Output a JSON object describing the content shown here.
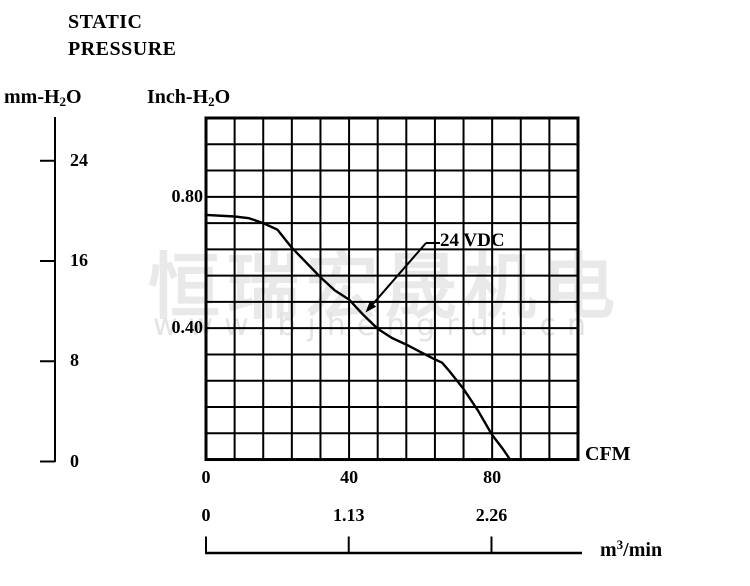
{
  "title": {
    "line1": "STATIC",
    "line2": "PRESSURE"
  },
  "axes": {
    "left_unit": {
      "prefix": "mm-H",
      "sub": "2",
      "suffix": "O"
    },
    "inner_unit": {
      "prefix": "Inch-H",
      "sub": "2",
      "suffix": "O"
    },
    "cfm_unit": "CFM",
    "m3_unit": {
      "prefix": "m",
      "sup": "3",
      "suffix": "/min"
    },
    "mm_ticks": [
      {
        "label": "24",
        "value": 24
      },
      {
        "label": "16",
        "value": 16
      },
      {
        "label": "8",
        "value": 8
      },
      {
        "label": "0",
        "value": 0
      }
    ],
    "inch_ticks": [
      {
        "label": "0.80",
        "value": 0.8
      },
      {
        "label": "0.40",
        "value": 0.4
      }
    ],
    "cfm_ticks": [
      {
        "label": "0",
        "value": 0
      },
      {
        "label": "40",
        "value": 40
      },
      {
        "label": "80",
        "value": 80
      }
    ],
    "m3_ticks": [
      {
        "label": "0",
        "value": 0
      },
      {
        "label": "1.13",
        "value": 1.13
      },
      {
        "label": "2.26",
        "value": 2.26
      }
    ]
  },
  "curve_label": "24 VDC",
  "watermark": {
    "cjk": "恒瑞宏晟机电",
    "url": "www.bjhengrui.cn"
  },
  "colors": {
    "ink": "#000000",
    "watermark_gray": "#e8e8e8",
    "background": "#ffffff"
  },
  "chart_data": {
    "type": "line",
    "title": "STATIC PRESSURE",
    "xlabel": "CFM",
    "x2label": "m3/min",
    "ylabel": "Inch-H2O",
    "y2label": "mm-H2O",
    "xlim_cfm": [
      0,
      104
    ],
    "ylim_inch_h2o": [
      0,
      1.04
    ],
    "grid": true,
    "grid_step_cfm": 8,
    "grid_step_inch": 0.08,
    "x_ticks_cfm": [
      0,
      40,
      80
    ],
    "x_ticks_m3min": [
      0,
      1.13,
      2.26
    ],
    "y_ticks_inch": [
      0.4,
      0.8
    ],
    "y_ticks_mm": [
      0,
      8,
      16,
      24
    ],
    "legend_position": "annotation-arrow",
    "series": [
      {
        "name": "24 VDC",
        "x_cfm": [
          0,
          8,
          12,
          16,
          20,
          24,
          28,
          32,
          36,
          40,
          44,
          48,
          52,
          56,
          60,
          64,
          66,
          68,
          72,
          76,
          80,
          83,
          85
        ],
        "y_inch_h2o": [
          0.745,
          0.74,
          0.735,
          0.72,
          0.7,
          0.645,
          0.6,
          0.555,
          0.515,
          0.487,
          0.44,
          0.398,
          0.37,
          0.35,
          0.327,
          0.305,
          0.295,
          0.27,
          0.215,
          0.15,
          0.075,
          0.032,
          0
        ]
      }
    ]
  }
}
